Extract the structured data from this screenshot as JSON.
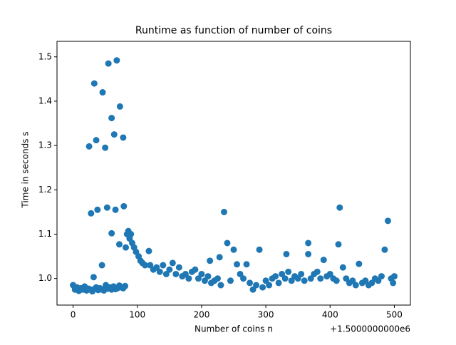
{
  "chart_data": {
    "type": "scatter",
    "title": "Runtime as function of number of coins",
    "x_label": "Number of coins n",
    "y_label": "Time in seconds s",
    "x_offset_label": "+1.5000000000e6",
    "color": "#1f77b4",
    "xlim": [
      -25,
      525
    ],
    "ylim": [
      0.94,
      1.535
    ],
    "xticks": [
      0,
      100,
      200,
      300,
      400,
      500
    ],
    "yticks": [
      {
        "value": 1.0,
        "label": "1.0"
      },
      1.1,
      1.2,
      1.3,
      1.4,
      1.5
    ],
    "x": [
      0,
      3,
      6,
      9,
      12,
      15,
      18,
      21,
      24,
      27,
      30,
      33,
      36,
      39,
      42,
      45,
      48,
      51,
      54,
      57,
      60,
      63,
      66,
      69,
      72,
      75,
      78,
      81,
      25,
      28,
      33,
      36,
      38,
      46,
      50,
      53,
      55,
      60,
      64,
      68,
      73,
      78,
      60,
      66,
      79,
      32,
      45,
      72,
      82,
      84,
      86,
      88,
      90,
      92,
      95,
      98,
      102,
      105,
      108,
      112,
      118,
      120,
      235,
      240,
      250,
      228,
      213,
      255,
      270,
      290,
      332,
      366,
      366,
      390,
      415,
      413,
      420,
      445,
      485,
      490,
      125,
      130,
      135,
      140,
      145,
      150,
      155,
      160,
      165,
      170,
      175,
      180,
      185,
      190,
      195,
      200,
      205,
      210,
      215,
      220,
      225,
      230,
      245,
      260,
      265,
      275,
      280,
      285,
      295,
      300,
      305,
      310,
      315,
      320,
      325,
      330,
      335,
      340,
      345,
      350,
      355,
      360,
      370,
      375,
      380,
      385,
      395,
      400,
      405,
      410,
      425,
      430,
      435,
      440,
      450,
      455,
      460,
      465,
      470,
      475,
      480,
      495,
      500,
      498
    ],
    "values": [
      0.985,
      0.975,
      0.98,
      0.972,
      0.978,
      0.975,
      0.982,
      0.973,
      0.977,
      0.975,
      0.971,
      0.976,
      0.98,
      0.974,
      0.978,
      0.975,
      0.973,
      0.985,
      0.977,
      0.98,
      0.975,
      0.982,
      0.976,
      0.978,
      0.984,
      0.98,
      0.978,
      0.983,
      1.298,
      1.147,
      1.44,
      1.312,
      1.155,
      1.42,
      1.295,
      1.16,
      1.485,
      1.362,
      1.325,
      1.492,
      1.388,
      1.318,
      1.102,
      1.155,
      1.163,
      1.003,
      1.03,
      1.077,
      1.07,
      1.1,
      1.107,
      1.09,
      1.1,
      1.08,
      1.07,
      1.06,
      1.05,
      1.04,
      1.035,
      1.03,
      1.062,
      1.03,
      1.15,
      1.08,
      1.065,
      1.048,
      1.04,
      1.032,
      1.032,
      1.065,
      1.055,
      1.08,
      1.055,
      1.042,
      1.16,
      1.077,
      1.025,
      1.033,
      1.065,
      1.13,
      1.02,
      1.025,
      1.015,
      1.03,
      1.01,
      1.02,
      1.035,
      1.01,
      1.025,
      1.005,
      1.01,
      1.0,
      1.015,
      1.02,
      1.0,
      1.01,
      0.995,
      1.005,
      0.99,
      0.995,
      1.0,
      0.985,
      0.995,
      1.01,
      1.0,
      0.99,
      0.975,
      0.985,
      0.98,
      0.995,
      0.985,
      1.0,
      1.005,
      0.99,
      1.01,
      1.0,
      1.015,
      0.995,
      1.005,
      1.0,
      1.01,
      0.995,
      1.0,
      1.01,
      1.015,
      1.0,
      1.005,
      1.01,
      1.0,
      0.995,
      1.0,
      0.99,
      0.995,
      0.985,
      0.99,
      0.995,
      0.985,
      0.99,
      1.0,
      0.995,
      1.005,
      1.0,
      1.005,
      0.99
    ]
  }
}
